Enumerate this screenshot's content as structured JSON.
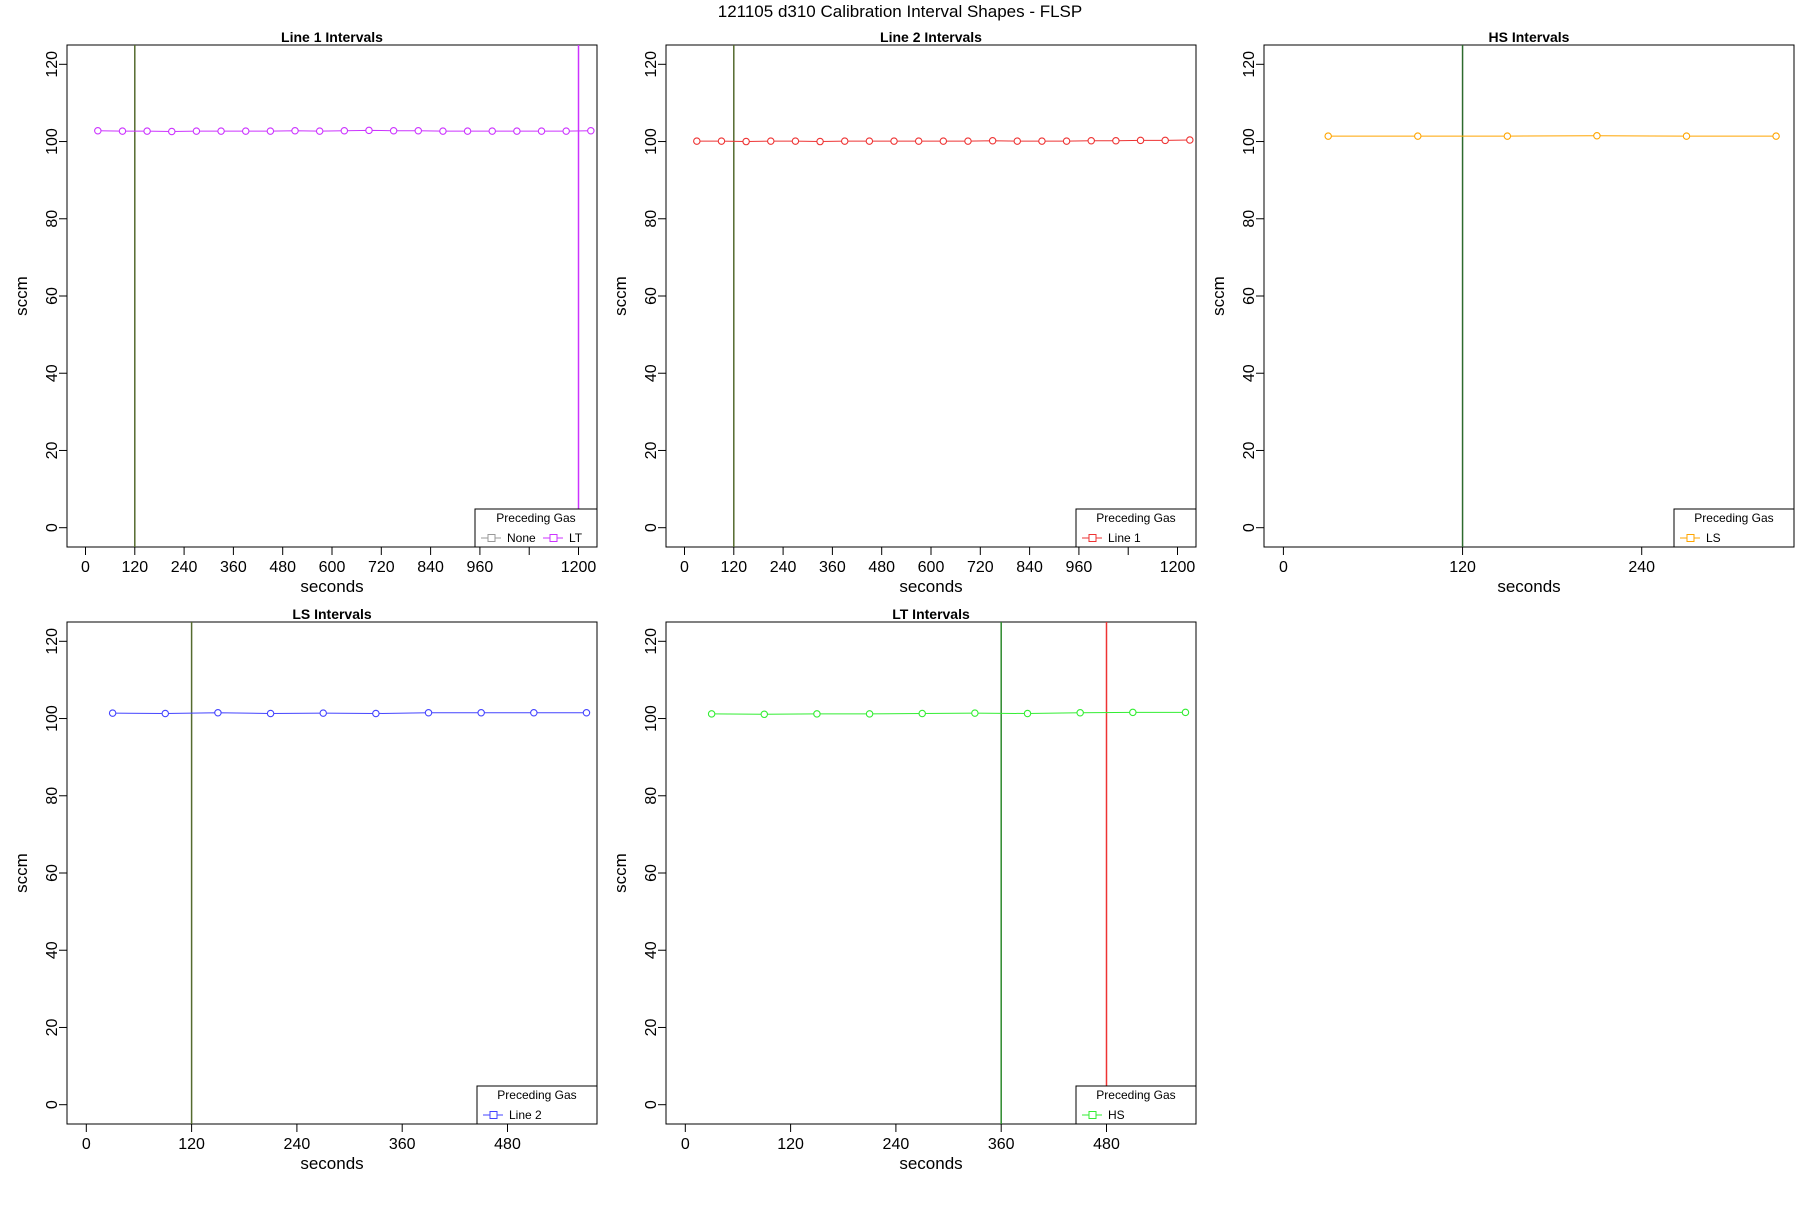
{
  "page": {
    "title": "121105   d310   Calibration Interval Shapes - FLSP"
  },
  "chart_data": [
    {
      "type": "line",
      "title": "Line 1 Intervals",
      "xlabel": "seconds",
      "ylabel": "sccm",
      "xlim": [
        -45,
        1245
      ],
      "ylim": [
        -5,
        125
      ],
      "xticks": [
        0,
        120,
        240,
        360,
        480,
        600,
        720,
        840,
        960,
        1080,
        1200
      ],
      "xtick_labels": [
        "0",
        "120",
        "240",
        "360",
        "480",
        "600",
        "720",
        "840",
        "960",
        "",
        "1200"
      ],
      "yticks": [
        0,
        20,
        40,
        60,
        80,
        100,
        120
      ],
      "vlines": [
        {
          "x": 120,
          "color": "#556b2f"
        },
        {
          "x": 1200,
          "color": "#cc33ff"
        }
      ],
      "series": [
        {
          "name": "LT",
          "color": "#cc33ff",
          "x": [
            30,
            90,
            150,
            210,
            270,
            330,
            390,
            450,
            510,
            570,
            630,
            690,
            750,
            810,
            870,
            930,
            990,
            1050,
            1110,
            1170,
            1230
          ],
          "y": [
            102.8,
            102.7,
            102.7,
            102.6,
            102.7,
            102.7,
            102.7,
            102.7,
            102.8,
            102.7,
            102.8,
            102.9,
            102.8,
            102.8,
            102.7,
            102.7,
            102.7,
            102.7,
            102.7,
            102.7,
            102.8
          ]
        }
      ],
      "legend": {
        "title": "Preceding Gas",
        "placement": "bottom-right",
        "entries": [
          {
            "label": "None",
            "color": "#999999"
          },
          {
            "label": "LT",
            "color": "#cc33ff"
          }
        ]
      }
    },
    {
      "type": "line",
      "title": "Line 2 Intervals",
      "xlabel": "seconds",
      "ylabel": "sccm",
      "xlim": [
        -45,
        1245
      ],
      "ylim": [
        -5,
        125
      ],
      "xticks": [
        0,
        120,
        240,
        360,
        480,
        600,
        720,
        840,
        960,
        1080,
        1200
      ],
      "xtick_labels": [
        "0",
        "120",
        "240",
        "360",
        "480",
        "600",
        "720",
        "840",
        "960",
        "",
        "1200"
      ],
      "yticks": [
        0,
        20,
        40,
        60,
        80,
        100,
        120
      ],
      "vlines": [
        {
          "x": 120,
          "color": "#556b2f"
        }
      ],
      "series": [
        {
          "name": "Line 1",
          "color": "#ee3333",
          "x": [
            30,
            90,
            150,
            210,
            270,
            330,
            390,
            450,
            510,
            570,
            630,
            690,
            750,
            810,
            870,
            930,
            990,
            1050,
            1110,
            1170,
            1230
          ],
          "y": [
            100.1,
            100.1,
            100.0,
            100.1,
            100.1,
            100.0,
            100.1,
            100.1,
            100.1,
            100.1,
            100.1,
            100.1,
            100.2,
            100.1,
            100.1,
            100.1,
            100.2,
            100.2,
            100.3,
            100.3,
            100.4
          ]
        }
      ],
      "legend": {
        "title": "Preceding Gas",
        "placement": "bottom-right",
        "entries": [
          {
            "label": "Line 1",
            "color": "#ee3333"
          }
        ]
      }
    },
    {
      "type": "line",
      "title": "HS Intervals",
      "xlabel": "seconds",
      "ylabel": "sccm",
      "xlim": [
        -13,
        342
      ],
      "ylim": [
        -5,
        125
      ],
      "xticks": [
        0,
        120,
        240
      ],
      "xtick_labels": [
        "0",
        "120",
        "240"
      ],
      "yticks": [
        0,
        20,
        40,
        60,
        80,
        100,
        120
      ],
      "vlines": [
        {
          "x": 120,
          "color": "#2d6a2d"
        }
      ],
      "series": [
        {
          "name": "LS",
          "color": "#ffa500",
          "x": [
            30,
            90,
            150,
            210,
            270,
            330
          ],
          "y": [
            101.4,
            101.4,
            101.4,
            101.5,
            101.4,
            101.4
          ]
        }
      ],
      "legend": {
        "title": "Preceding Gas",
        "placement": "bottom-right",
        "entries": [
          {
            "label": "LS",
            "color": "#ffa500"
          }
        ]
      }
    },
    {
      "type": "line",
      "title": "LS Intervals",
      "xlabel": "seconds",
      "ylabel": "sccm",
      "xlim": [
        -22,
        582
      ],
      "ylim": [
        -5,
        125
      ],
      "xticks": [
        0,
        120,
        240,
        360,
        480
      ],
      "xtick_labels": [
        "0",
        "120",
        "240",
        "360",
        "480"
      ],
      "yticks": [
        0,
        20,
        40,
        60,
        80,
        100,
        120
      ],
      "vlines": [
        {
          "x": 120,
          "color": "#556b2f"
        }
      ],
      "series": [
        {
          "name": "Line 2",
          "color": "#4444ff",
          "x": [
            30,
            90,
            150,
            210,
            270,
            330,
            390,
            450,
            510,
            570
          ],
          "y": [
            101.4,
            101.3,
            101.5,
            101.3,
            101.4,
            101.3,
            101.5,
            101.5,
            101.5,
            101.5
          ]
        }
      ],
      "legend": {
        "title": "Preceding Gas",
        "placement": "bottom-right",
        "entries": [
          {
            "label": "Line 2",
            "color": "#4444ff"
          }
        ]
      }
    },
    {
      "type": "line",
      "title": "LT Intervals",
      "xlabel": "seconds",
      "ylabel": "sccm",
      "xlim": [
        -22,
        582
      ],
      "ylim": [
        -5,
        125
      ],
      "xticks": [
        0,
        120,
        240,
        360,
        480
      ],
      "xtick_labels": [
        "0",
        "120",
        "240",
        "360",
        "480"
      ],
      "yticks": [
        0,
        20,
        40,
        60,
        80,
        100,
        120
      ],
      "vlines": [
        {
          "x": 360,
          "color": "#2d8a2d"
        },
        {
          "x": 480,
          "color": "#ee3333"
        }
      ],
      "series": [
        {
          "name": "HS",
          "color": "#33ee33",
          "x": [
            30,
            90,
            150,
            210,
            270,
            330,
            390,
            450,
            510,
            570
          ],
          "y": [
            101.2,
            101.1,
            101.2,
            101.2,
            101.3,
            101.4,
            101.3,
            101.5,
            101.6,
            101.6
          ]
        }
      ],
      "legend": {
        "title": "Preceding Gas",
        "placement": "bottom-right",
        "entries": [
          {
            "label": "HS",
            "color": "#33ee33"
          }
        ]
      }
    }
  ]
}
